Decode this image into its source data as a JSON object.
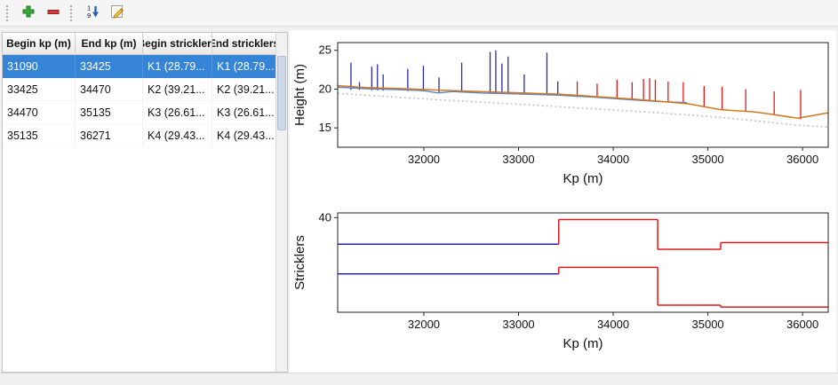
{
  "toolbar": {
    "add_tooltip": "Add",
    "remove_tooltip": "Remove",
    "sort_tooltip": "Sort",
    "edit_tooltip": "Edit"
  },
  "table": {
    "headers": [
      "Begin kp (m)",
      "End kp (m)",
      "Begin stricklers",
      "End stricklers"
    ],
    "rows": [
      [
        "31090",
        "33425",
        "K1 (28.79...",
        "K1 (28.79..."
      ],
      [
        "33425",
        "34470",
        "K2 (39.21...",
        "K2 (39.21..."
      ],
      [
        "34470",
        "35135",
        "K3 (26.61...",
        "K3 (26.61..."
      ],
      [
        "35135",
        "36271",
        "K4 (29.43...",
        "K4 (29.43..."
      ]
    ],
    "selected_row": 0
  },
  "colors": {
    "selection": "#3584d6",
    "blue_series": "#2929ad",
    "red_series": "#e01818",
    "orange_line": "#d2781e",
    "light_blue_line": "#5b84c4",
    "dotted_gray": "#c0c0c0"
  },
  "chart_data": [
    {
      "type": "line",
      "title": "",
      "xlabel": "Kp (m)",
      "ylabel": "Height (m)",
      "xlim": [
        31090,
        36271
      ],
      "ylim": [
        12.5,
        26
      ],
      "xticks": [
        32000,
        33000,
        34000,
        35000,
        36000
      ],
      "yticks": [
        15,
        20,
        25
      ],
      "series": [
        {
          "name": "reference-line-dotted",
          "color": "#c0c0c0",
          "width": 1.6,
          "dash": "2 3",
          "points": [
            [
              31090,
              19.45
            ],
            [
              32000,
              18.75
            ],
            [
              33000,
              18.05
            ],
            [
              34000,
              17.3
            ],
            [
              34470,
              16.95
            ],
            [
              35135,
              16.35
            ],
            [
              35950,
              15.35
            ],
            [
              36271,
              15.1
            ]
          ]
        },
        {
          "name": "water-line-blue",
          "color": "#5b84c4",
          "width": 1.4,
          "points": [
            [
              31090,
              20.25
            ],
            [
              31400,
              20.05
            ],
            [
              31700,
              19.95
            ],
            [
              32000,
              19.8
            ],
            [
              32150,
              19.5
            ],
            [
              32300,
              19.68
            ],
            [
              32600,
              19.5
            ],
            [
              33000,
              19.38
            ],
            [
              33425,
              19.22
            ],
            [
              33800,
              18.95
            ],
            [
              34200,
              18.62
            ],
            [
              34470,
              18.4
            ],
            [
              34780,
              18.25
            ]
          ]
        },
        {
          "name": "water-line-orange",
          "color": "#d2781e",
          "width": 1.5,
          "points": [
            [
              31090,
              20.45
            ],
            [
              31400,
              20.2
            ],
            [
              31800,
              20.05
            ],
            [
              32200,
              19.85
            ],
            [
              32600,
              19.68
            ],
            [
              33000,
              19.52
            ],
            [
              33425,
              19.35
            ],
            [
              33800,
              19.05
            ],
            [
              34200,
              18.72
            ],
            [
              34470,
              18.45
            ],
            [
              34800,
              18.1
            ],
            [
              35135,
              17.35
            ],
            [
              35500,
              17.05
            ],
            [
              35950,
              16.25
            ],
            [
              36271,
              16.95
            ]
          ]
        }
      ],
      "spikes": [
        {
          "x": 31230,
          "y0": 19.9,
          "y1": 23.4,
          "color": "#2929ad"
        },
        {
          "x": 31320,
          "y0": 19.9,
          "y1": 20.9,
          "color": "#2929ad"
        },
        {
          "x": 31450,
          "y0": 19.85,
          "y1": 22.9,
          "color": "#2929ad"
        },
        {
          "x": 31510,
          "y0": 19.85,
          "y1": 23.2,
          "color": "#2929ad"
        },
        {
          "x": 31570,
          "y0": 19.8,
          "y1": 21.9,
          "color": "#2929ad"
        },
        {
          "x": 31830,
          "y0": 19.75,
          "y1": 22.6,
          "color": "#2929ad"
        },
        {
          "x": 31995,
          "y0": 19.7,
          "y1": 23.0,
          "color": "#2929ad"
        },
        {
          "x": 32160,
          "y0": 19.5,
          "y1": 21.5,
          "color": "#2929ad"
        },
        {
          "x": 32400,
          "y0": 19.6,
          "y1": 23.4,
          "color": "#2929ad"
        },
        {
          "x": 32700,
          "y0": 19.45,
          "y1": 24.8,
          "color": "#2929ad"
        },
        {
          "x": 32760,
          "y0": 19.45,
          "y1": 25.0,
          "color": "#2929ad"
        },
        {
          "x": 32825,
          "y0": 19.4,
          "y1": 23.3,
          "color": "#2929ad"
        },
        {
          "x": 32890,
          "y0": 19.4,
          "y1": 24.2,
          "color": "#2929ad"
        },
        {
          "x": 33060,
          "y0": 19.35,
          "y1": 21.9,
          "color": "#2929ad"
        },
        {
          "x": 33300,
          "y0": 19.25,
          "y1": 24.7,
          "color": "#2929ad"
        },
        {
          "x": 33415,
          "y0": 19.2,
          "y1": 21.0,
          "color": "#2929ad"
        },
        {
          "x": 33620,
          "y0": 18.95,
          "y1": 21.0,
          "color": "#e01818"
        },
        {
          "x": 33830,
          "y0": 18.85,
          "y1": 20.7,
          "color": "#e01818"
        },
        {
          "x": 34040,
          "y0": 18.7,
          "y1": 21.2,
          "color": "#e01818"
        },
        {
          "x": 34200,
          "y0": 18.6,
          "y1": 20.9,
          "color": "#e01818"
        },
        {
          "x": 34320,
          "y0": 18.55,
          "y1": 21.3,
          "color": "#e01818"
        },
        {
          "x": 34385,
          "y0": 18.5,
          "y1": 21.4,
          "color": "#e01818"
        },
        {
          "x": 34445,
          "y0": 18.5,
          "y1": 21.2,
          "color": "#e01818"
        },
        {
          "x": 34580,
          "y0": 18.4,
          "y1": 21.0,
          "color": "#e01818"
        },
        {
          "x": 34740,
          "y0": 18.2,
          "y1": 20.9,
          "color": "#e01818"
        },
        {
          "x": 34960,
          "y0": 17.8,
          "y1": 20.4,
          "color": "#e01818"
        },
        {
          "x": 35150,
          "y0": 17.3,
          "y1": 20.3,
          "color": "#e01818"
        },
        {
          "x": 35400,
          "y0": 17.1,
          "y1": 20.0,
          "color": "#e01818"
        },
        {
          "x": 35700,
          "y0": 16.7,
          "y1": 19.7,
          "color": "#e01818"
        },
        {
          "x": 35980,
          "y0": 16.1,
          "y1": 19.9,
          "color": "#e01818"
        }
      ]
    },
    {
      "type": "line",
      "title": "",
      "xlabel": "Kp (m)",
      "ylabel": "Stricklers",
      "xlim": [
        31090,
        36271
      ],
      "ylim": [
        0,
        42
      ],
      "xticks": [
        32000,
        33000,
        34000,
        35000,
        36000
      ],
      "yticks": [
        40
      ],
      "step_series": [
        {
          "name": "minor-bed-stricklers",
          "segments": [
            {
              "x0": 31090,
              "x1": 33425,
              "y": 28.79,
              "color": "#2525b5"
            },
            {
              "x0": 33425,
              "x1": 34470,
              "y": 39.21,
              "color": "#e01818"
            },
            {
              "x0": 34470,
              "x1": 35135,
              "y": 26.61,
              "color": "#e01818"
            },
            {
              "x0": 35135,
              "x1": 36271,
              "y": 29.43,
              "color": "#e01818"
            }
          ]
        },
        {
          "name": "major-bed-stricklers",
          "segments": [
            {
              "x0": 31090,
              "x1": 33425,
              "y": 16.2,
              "color": "#2525b5"
            },
            {
              "x0": 33425,
              "x1": 34470,
              "y": 19.0,
              "color": "#e01818"
            },
            {
              "x0": 34470,
              "x1": 35135,
              "y": 3.0,
              "color": "#e01818"
            },
            {
              "x0": 35135,
              "x1": 36271,
              "y": 2.2,
              "color": "#e01818"
            }
          ]
        }
      ]
    }
  ]
}
